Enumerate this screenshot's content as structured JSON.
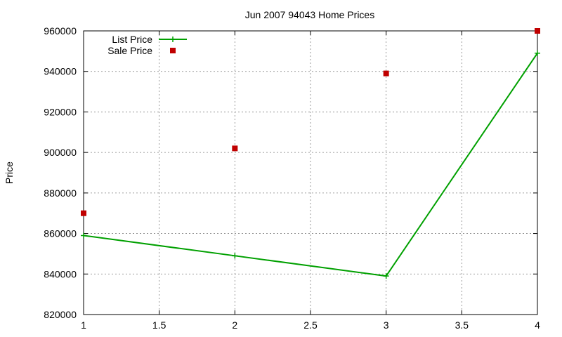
{
  "chart_data": {
    "type": "line",
    "title": "Jun 2007 94043 Home Prices",
    "xlabel": "",
    "ylabel": "Price",
    "xlim": [
      1,
      4
    ],
    "ylim": [
      820000,
      960000
    ],
    "x_ticks": [
      1,
      1.5,
      2,
      2.5,
      3,
      3.5,
      4
    ],
    "x_tick_labels": [
      "1",
      "1.5",
      "2",
      "2.5",
      "3",
      "3.5",
      "4"
    ],
    "y_ticks": [
      820000,
      840000,
      860000,
      880000,
      900000,
      920000,
      940000,
      960000
    ],
    "y_tick_labels": [
      "820000",
      "840000",
      "860000",
      "880000",
      "900000",
      "920000",
      "940000",
      "960000"
    ],
    "grid": true,
    "legend_position": "top-left",
    "series": [
      {
        "name": "List Price",
        "style": "lines+points",
        "marker": "plus",
        "color": "#00a000",
        "x": [
          1,
          2,
          3,
          4
        ],
        "y": [
          859000,
          849000,
          839000,
          949000
        ]
      },
      {
        "name": "Sale Price",
        "style": "points",
        "marker": "square",
        "color": "#c00000",
        "x": [
          1,
          2,
          3,
          4
        ],
        "y": [
          870000,
          902000,
          939000,
          960000
        ]
      }
    ]
  }
}
